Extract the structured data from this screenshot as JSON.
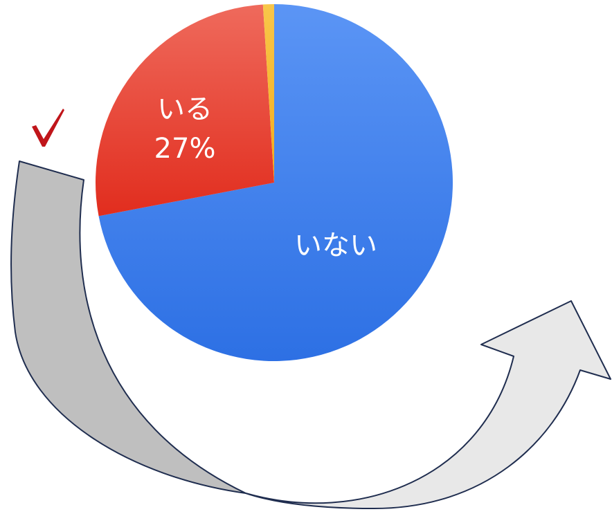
{
  "chart_data": {
    "type": "pie",
    "slices": [
      {
        "label": "いない",
        "value": 72,
        "display": "いない",
        "color": "#3f84f2"
      },
      {
        "label": "いる",
        "value": 27,
        "display": "27%",
        "color": "#e8382c"
      },
      {
        "label": "",
        "value": 1,
        "display": "",
        "color": "#f5b82e"
      }
    ],
    "start_angle_deg": 0,
    "direction": "clockwise"
  },
  "decorations": {
    "checkmark": {
      "color": "#c0151a"
    },
    "arrow": {
      "back_color": "#bfbfbf",
      "front_color": "#e8e8e8",
      "outline_color": "#1f2d4f"
    }
  }
}
